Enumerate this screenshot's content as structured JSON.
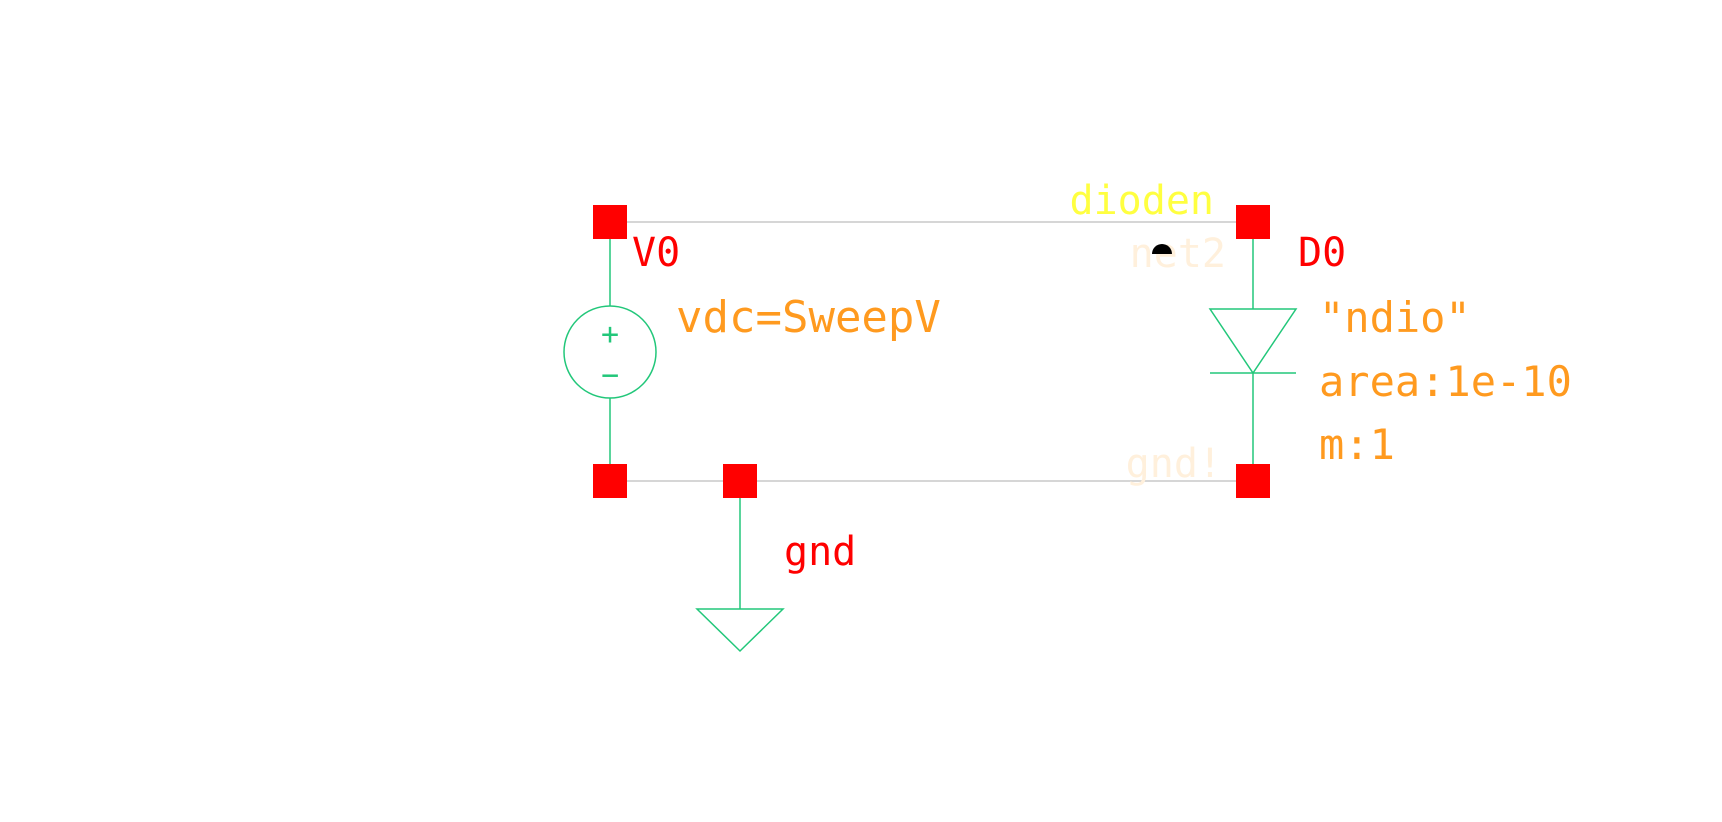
{
  "schematic": {
    "net_label_top": "dioden",
    "net_label_net2": "net2",
    "net_label_gnd": "gnd!",
    "source": {
      "instance": "V0",
      "param": "vdc=SweepV",
      "plus_glyph": "+",
      "minus_glyph": "−"
    },
    "diode": {
      "instance": "D0",
      "model": "\"ndio\"",
      "area": "area:1e-10",
      "m": "m:1"
    },
    "ground": {
      "label": "gnd"
    }
  },
  "colors": {
    "wire": "#c8c8c8",
    "symbol": "#22c77a",
    "pin": "#ff0000",
    "instance_label": "#ff0000",
    "param_label": "#ff9a1f",
    "net_label": "#ffff40",
    "faded_net": "#fff0dc",
    "background": "#ffffff"
  }
}
